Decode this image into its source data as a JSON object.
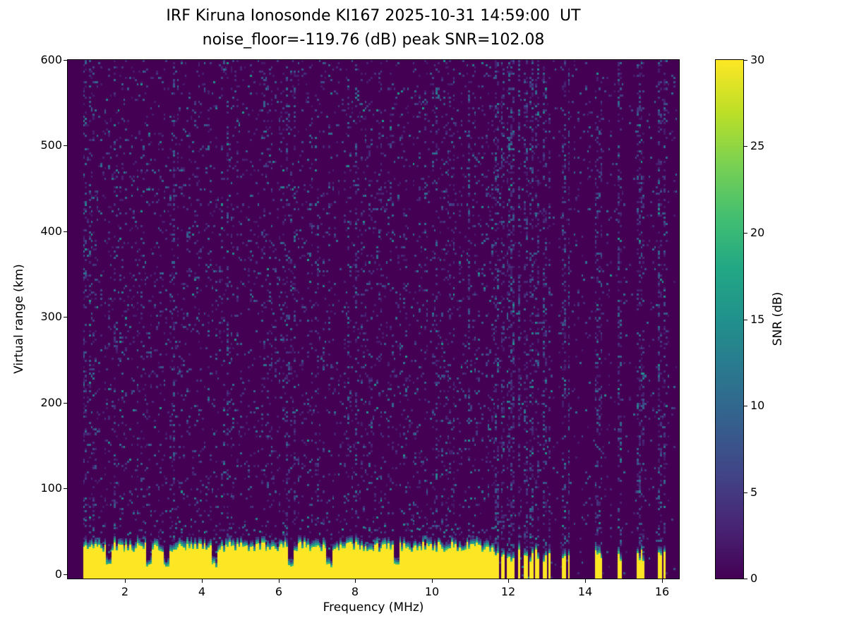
{
  "chart_data": {
    "type": "heatmap",
    "title": "IRF Kiruna Ionosonde KI167 2025-10-31 14:59:00  UT",
    "subtitle": "noise_floor=-119.76 (dB) peak SNR=102.08",
    "xlabel": "Frequency (MHz)",
    "ylabel": "Virtual range (km)",
    "colorbar_label": "SNR (dB)",
    "station": "IRF Kiruna Ionosonde KI167",
    "timestamp_ut": "2025-10-31 14:59:00",
    "noise_floor_db": -119.76,
    "peak_snr_db": 102.08,
    "x_range_mhz": [
      0.5,
      16.45
    ],
    "y_range_km": [
      -5,
      600
    ],
    "x_ticks": [
      2,
      4,
      6,
      8,
      10,
      12,
      14,
      16
    ],
    "y_ticks": [
      0,
      100,
      200,
      300,
      400,
      500,
      600
    ],
    "colorbar_range_db": [
      0,
      30
    ],
    "colorbar_ticks": [
      0,
      5,
      10,
      15,
      20,
      25,
      30
    ],
    "colormap": "viridis",
    "colormap_stops": [
      "#440154",
      "#482475",
      "#414487",
      "#355f8d",
      "#2a788e",
      "#21918c",
      "#22a884",
      "#44bf70",
      "#7ad151",
      "#bddf26",
      "#fde725"
    ],
    "data_freq_span_mhz": [
      0.9,
      16.38
    ],
    "features": {
      "background": "sparse low-SNR noise speckle (2-11 dB) across all virtual ranges",
      "ground_clutter_band": {
        "freq_span_mhz": [
          0.9,
          11.62
        ],
        "top_km_typical": 35,
        "snr_db": 30,
        "note": "continuous saturated yellow band near 0 km with teal/green fringe up to ~50 km and narrow notches"
      },
      "notch_freqs_mhz": [
        1.55,
        2.6,
        3.05,
        4.3,
        6.3,
        7.3,
        9.05
      ],
      "sparse_clutter_columns_mhz": [
        11.7,
        11.85,
        12.0,
        12.12,
        12.28,
        12.45,
        12.6,
        12.75,
        12.95,
        13.08,
        13.45,
        13.58,
        14.3,
        14.42,
        14.9,
        15.38,
        15.52,
        15.95,
        16.08
      ],
      "noise_stripe_region_mhz": [
        11.62,
        16.38
      ]
    },
    "render_seed": 20251031
  }
}
